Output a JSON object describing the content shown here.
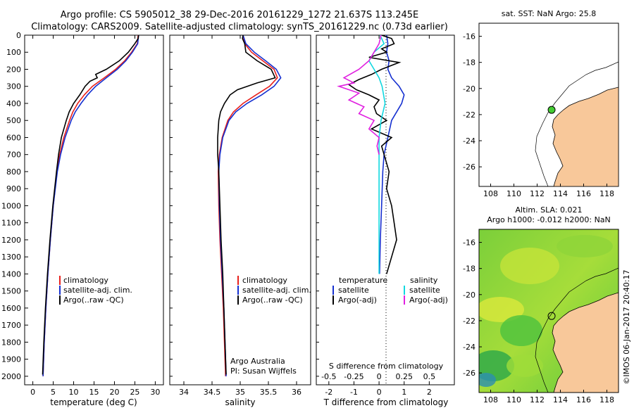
{
  "header": {
    "line1": "Argo profile: CS 5905012_38 29-Dec-2016 20161229_1272 21.637S 113.245E",
    "line2": "Climatology: CARS2009. Satellite-adjusted climatology: synTS_20161229.nc (0.73d earlier)"
  },
  "colors": {
    "clim": "#e8201c",
    "sat": "#1530d0",
    "argo": "#000000",
    "sat_s": "#10d8e0",
    "argo_s": "#e020e0",
    "land": "#f8c89a",
    "sst_marker": "#44cc33"
  },
  "chart_data": [
    {
      "type": "line",
      "id": "temperature",
      "xlabel": "temperature (deg C)",
      "ylabel": "",
      "xlim": [
        -2,
        32
      ],
      "ylim": [
        2050,
        0
      ],
      "xticks": [
        "0",
        "5",
        "10",
        "15",
        "20",
        "25",
        "30"
      ],
      "yticks": [
        "0",
        "100",
        "200",
        "300",
        "400",
        "500",
        "600",
        "700",
        "800",
        "900",
        "1000",
        "1100",
        "1200",
        "1300",
        "1400",
        "1500",
        "1600",
        "1700",
        "1800",
        "1900",
        "2000"
      ],
      "legend": [
        "climatology",
        "satellite-adj. clim.",
        "Argo(..raw -QC)"
      ],
      "series": [
        {
          "name": "climatology",
          "depth": [
            0,
            50,
            100,
            150,
            200,
            250,
            300,
            350,
            400,
            450,
            500,
            600,
            700,
            800,
            1000,
            1200,
            1400,
            1600,
            1800,
            2000
          ],
          "values": [
            25.8,
            25.6,
            24.2,
            22.5,
            20.3,
            17.5,
            14.6,
            12.6,
            11.0,
            9.8,
            9.0,
            7.6,
            6.6,
            5.9,
            5.0,
            4.3,
            3.7,
            3.2,
            2.8,
            2.5
          ]
        },
        {
          "name": "satellite-adj. clim.",
          "depth": [
            0,
            50,
            100,
            150,
            200,
            250,
            300,
            350,
            400,
            450,
            500,
            600,
            700,
            800,
            1000,
            1200,
            1400,
            1600,
            1800,
            2000
          ],
          "values": [
            25.9,
            25.7,
            24.4,
            22.8,
            20.7,
            18.0,
            15.4,
            13.4,
            11.8,
            10.4,
            9.4,
            7.9,
            6.8,
            6.0,
            5.0,
            4.3,
            3.7,
            3.2,
            2.8,
            2.5
          ]
        },
        {
          "name": "Argo(..raw -QC)",
          "depth": [
            0,
            20,
            50,
            100,
            150,
            200,
            230,
            250,
            270,
            300,
            350,
            400,
            450,
            500,
            600,
            700,
            800,
            1000,
            1200,
            1400,
            1600,
            1800,
            1990
          ],
          "values": [
            25.9,
            25.8,
            25.0,
            23.4,
            21.2,
            18.0,
            15.4,
            15.8,
            14.0,
            12.8,
            11.5,
            10.0,
            8.9,
            8.2,
            7.0,
            6.3,
            5.8,
            4.9,
            4.2,
            3.6,
            3.1,
            2.7,
            2.4
          ]
        }
      ]
    },
    {
      "type": "line",
      "id": "salinity",
      "xlabel": "salinity",
      "ylabel": "",
      "xlim": [
        33.75,
        36.25
      ],
      "ylim": [
        2050,
        0
      ],
      "xticks": [
        "34",
        "34.5",
        "35",
        "35.5",
        "36"
      ],
      "legend": [
        "climatology",
        "satellite-adj. clim.",
        "Argo(..raw -QC)"
      ],
      "annotation": [
        "Argo Australia",
        "PI: Susan Wijffels"
      ],
      "series": [
        {
          "name": "climatology",
          "depth": [
            0,
            50,
            100,
            150,
            200,
            250,
            300,
            350,
            400,
            450,
            500,
            600,
            700,
            800,
            1000,
            1200,
            1400,
            1600,
            1800,
            2000
          ],
          "values": [
            35.05,
            35.08,
            35.2,
            35.4,
            35.6,
            35.66,
            35.52,
            35.28,
            35.05,
            34.88,
            34.78,
            34.68,
            34.63,
            34.61,
            34.62,
            34.64,
            34.67,
            34.7,
            34.72,
            34.74
          ]
        },
        {
          "name": "satellite-adj. clim.",
          "depth": [
            0,
            50,
            100,
            150,
            200,
            250,
            300,
            350,
            400,
            450,
            500,
            600,
            700,
            800,
            1000,
            1200,
            1400,
            1600,
            1800,
            2000
          ],
          "values": [
            35.05,
            35.1,
            35.25,
            35.45,
            35.64,
            35.72,
            35.6,
            35.38,
            35.12,
            34.92,
            34.8,
            34.69,
            34.64,
            34.62,
            34.63,
            34.65,
            34.68,
            34.71,
            34.73,
            34.75
          ]
        },
        {
          "name": "Argo(..raw -QC)",
          "depth": [
            0,
            20,
            50,
            100,
            150,
            200,
            250,
            280,
            320,
            350,
            400,
            450,
            500,
            600,
            700,
            800,
            1000,
            1200,
            1400,
            1600,
            1800,
            1990
          ],
          "values": [
            35.05,
            35.04,
            35.08,
            35.1,
            35.3,
            35.55,
            35.62,
            35.3,
            34.95,
            34.82,
            34.72,
            34.65,
            34.62,
            34.6,
            34.6,
            34.62,
            34.64,
            34.66,
            34.69,
            34.71,
            34.73,
            34.75
          ]
        }
      ]
    },
    {
      "type": "line",
      "id": "difference",
      "xlabel": "T difference from climatology",
      "xlabel_top": "S difference from climatology",
      "xlim": [
        -2.5,
        3
      ],
      "ylim": [
        2050,
        0
      ],
      "xticks": [
        "-2",
        "-1",
        "0",
        "1",
        "2"
      ],
      "xticks_top": [
        "-0.5",
        "-0.25",
        "0",
        "0.25",
        "0.5"
      ],
      "legend_headers": [
        "temperature",
        "salinity"
      ],
      "legend": [
        "satellite",
        "Argo(-adj)",
        "satellite",
        "Argo(-adj)"
      ],
      "series": [
        {
          "name": "temperature satellite",
          "depth": [
            0,
            50,
            100,
            150,
            200,
            250,
            300,
            350,
            400,
            500,
            600,
            700,
            800,
            1000,
            1200,
            1400
          ],
          "values": [
            0.3,
            0.35,
            0.3,
            0.4,
            0.35,
            0.5,
            0.8,
            1.0,
            0.9,
            0.5,
            0.35,
            0.2,
            0.15,
            0.1,
            0.05,
            0.02
          ]
        },
        {
          "name": "temperature Argo(-adj)",
          "depth": [
            0,
            20,
            50,
            80,
            100,
            130,
            160,
            200,
            230,
            260,
            290,
            320,
            350,
            380,
            420,
            460,
            500,
            550,
            600,
            650,
            700,
            800,
            900,
            1000,
            1100,
            1200,
            1300,
            1400
          ],
          "values": [
            0.1,
            0.5,
            0.6,
            0.1,
            0.3,
            -0.4,
            0.8,
            0.1,
            -0.3,
            -0.8,
            -1.2,
            -0.9,
            -0.4,
            0.0,
            -0.2,
            -0.1,
            0.3,
            -0.3,
            0.5,
            0.1,
            0.2,
            0.4,
            0.3,
            0.5,
            0.6,
            0.7,
            0.5,
            0.3
          ]
        },
        {
          "name": "salinity satellite",
          "depth": [
            0,
            50,
            100,
            150,
            200,
            250,
            300,
            400,
            500,
            600,
            700,
            800,
            1000,
            1200,
            1400
          ],
          "values": [
            0.01,
            0.05,
            -0.05,
            -0.1,
            -0.05,
            0.0,
            0.03,
            0.06,
            0.02,
            0.0,
            0.0,
            0.0,
            0.0,
            0.0,
            0.0
          ]
        },
        {
          "name": "salinity Argo(-adj)",
          "depth": [
            0,
            50,
            100,
            150,
            200,
            250,
            280,
            300,
            340,
            380,
            420,
            460,
            500,
            550,
            600,
            650,
            700
          ],
          "values": [
            0.02,
            0.0,
            -0.05,
            -0.1,
            -0.2,
            -0.35,
            -0.25,
            -0.4,
            -0.2,
            -0.3,
            -0.15,
            -0.2,
            -0.05,
            -0.1,
            0.0,
            -0.02,
            0.0
          ]
        }
      ]
    },
    {
      "type": "map",
      "id": "sst-map",
      "title": "sat. SST: NaN Argo: 25.8",
      "xlim": [
        107,
        119
      ],
      "ylim": [
        -27.5,
        -15
      ],
      "xticks": [
        "108",
        "110",
        "112",
        "114",
        "116",
        "118"
      ],
      "yticks": [
        "-16",
        "-18",
        "-20",
        "-22",
        "-24",
        "-26"
      ],
      "marker": {
        "lon": 113.245,
        "lat": -21.637
      }
    },
    {
      "type": "heatmap",
      "id": "sla-map",
      "title_line1": "Altim. SLA: 0.021",
      "title_line2": "Argo h1000: -0.012 h2000: NaN",
      "xlim": [
        107,
        119
      ],
      "ylim": [
        -27.5,
        -15
      ],
      "xticks": [
        "108",
        "110",
        "112",
        "114",
        "116",
        "118"
      ],
      "yticks": [
        "-16",
        "-18",
        "-20",
        "-22",
        "-24",
        "-26"
      ],
      "marker": {
        "lon": 113.245,
        "lat": -21.637
      }
    }
  ],
  "credit": "©IMOS 06-Jan-2017 20:40:17"
}
